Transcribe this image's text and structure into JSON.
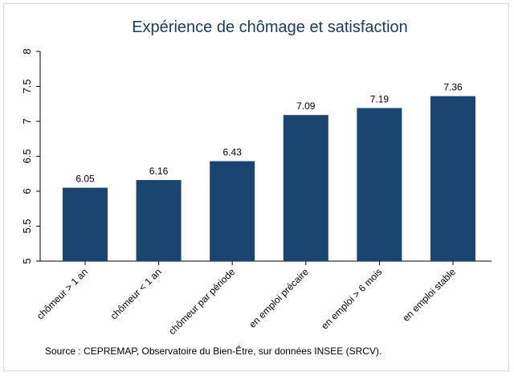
{
  "chart_data": {
    "type": "bar",
    "title": "Expérience de chômage et satisfaction",
    "categories": [
      "chômeur > 1 an",
      "chômeur < 1 an",
      "chômeur par période",
      "en emploi précaire",
      "en emploi > 6 mois",
      "en emploi stable"
    ],
    "values": [
      6.05,
      6.16,
      6.43,
      7.09,
      7.19,
      7.36
    ],
    "data_labels": [
      "6.05",
      "6.16",
      "6.43",
      "7.09",
      "7.19",
      "7.36"
    ],
    "ylim": [
      5,
      8
    ],
    "yticks": [
      "5",
      "5.5",
      "6",
      "6.5",
      "7",
      "7.5",
      "8"
    ],
    "bar_color": "#1a4570",
    "grid": false,
    "legend": "none"
  },
  "footer": {
    "source": "Source : CEPREMAP, Observatoire du Bien-Être, sur données INSEE (SRCV)."
  }
}
